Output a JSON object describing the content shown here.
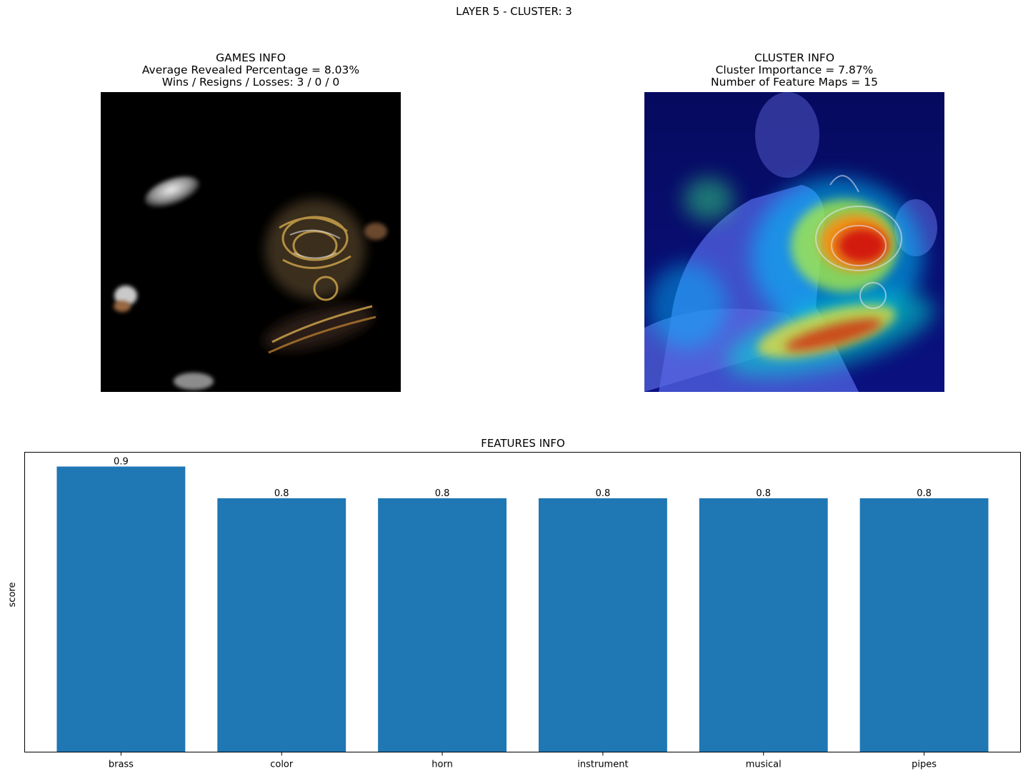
{
  "figure": {
    "suptitle": "LAYER 5 - CLUSTER: 3"
  },
  "games_panel": {
    "title": "GAMES INFO",
    "line1": "Average Revealed Percentage = 8.03%",
    "line2": "Wins / Resigns / Losses: 3 / 0 / 0",
    "image": "masked-french-horn-photo"
  },
  "cluster_panel": {
    "title": "CLUSTER INFO",
    "line1": "Cluster Importance = 7.87%",
    "line2": "Number of Feature Maps = 15",
    "image": "jet-heatmap-overlay-french-horn-player"
  },
  "chart_data": {
    "type": "bar",
    "title": "FEATURES INFO",
    "ylabel": "score",
    "xlabel": "",
    "categories": [
      "brass",
      "color",
      "horn",
      "instrument",
      "musical",
      "pipes"
    ],
    "values": [
      0.9,
      0.8,
      0.8,
      0.8,
      0.8,
      0.8
    ],
    "data_labels": [
      "0.9",
      "0.8",
      "0.8",
      "0.8",
      "0.8",
      "0.8"
    ],
    "ylim": [
      0,
      0.945
    ],
    "bar_color": "#1f77b4",
    "yticks_visible": false,
    "grid": false
  }
}
